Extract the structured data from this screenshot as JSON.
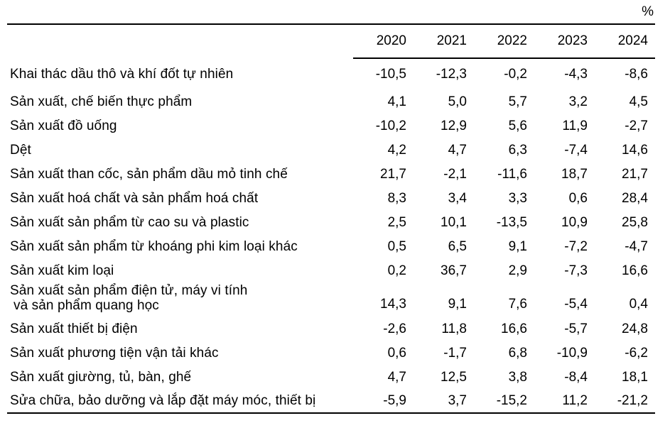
{
  "unit_label": "%",
  "chart_data": {
    "type": "table",
    "title": "",
    "unit": "%",
    "columns": [
      "2020",
      "2021",
      "2022",
      "2023",
      "2024"
    ],
    "rows": [
      {
        "label": "Khai thác dầu thô và khí đốt tự nhiên",
        "values": [
          "-10,5",
          "-12,3",
          "-0,2",
          "-4,3",
          "-8,6"
        ]
      },
      {
        "label": "Sản xuất, chế biến thực phẩm",
        "values": [
          "4,1",
          "5,0",
          "5,7",
          "3,2",
          "4,5"
        ]
      },
      {
        "label": "Sản xuất đồ uống",
        "values": [
          "-10,2",
          "12,9",
          "5,6",
          "11,9",
          "-2,7"
        ]
      },
      {
        "label": "Dệt",
        "values": [
          "4,2",
          "4,7",
          "6,3",
          "-7,4",
          "14,6"
        ]
      },
      {
        "label": "Sản xuất than cốc, sản phẩm dầu mỏ tinh chế",
        "values": [
          "21,7",
          "-2,1",
          "-11,6",
          "18,7",
          "21,7"
        ]
      },
      {
        "label": "Sản xuất hoá chất và sản phẩm hoá chất",
        "values": [
          "8,3",
          "3,4",
          "3,3",
          "0,6",
          "28,4"
        ]
      },
      {
        "label": "Sản xuất sản phẩm từ cao su và plastic",
        "values": [
          "2,5",
          "10,1",
          "-13,5",
          "10,9",
          "25,8"
        ]
      },
      {
        "label": "Sản xuất sản phẩm từ khoáng phi kim loại khác",
        "values": [
          "0,5",
          "6,5",
          "9,1",
          "-7,2",
          "-4,7"
        ]
      },
      {
        "label": "Sản xuất kim loại",
        "values": [
          "0,2",
          "36,7",
          "2,9",
          "-7,3",
          "16,6"
        ]
      },
      {
        "label": "Sản xuất sản phẩm điện tử, máy vi tính",
        "label_line2": "và sản phẩm quang học",
        "values": [
          "14,3",
          "9,1",
          "7,6",
          "-5,4",
          "0,4"
        ]
      },
      {
        "label": "Sản xuất thiết bị điện",
        "values": [
          "-2,6",
          "11,8",
          "16,6",
          "-5,7",
          "24,8"
        ]
      },
      {
        "label": "Sản xuất phương tiện vận tải khác",
        "values": [
          "0,6",
          "-1,7",
          "6,8",
          "-10,9",
          "-6,2"
        ]
      },
      {
        "label": "Sản xuất giường, tủ, bàn, ghế",
        "values": [
          "4,7",
          "12,5",
          "3,8",
          "-8,4",
          "18,1"
        ]
      },
      {
        "label": "Sửa chữa, bảo dưỡng và lắp đặt máy móc, thiết bị",
        "values": [
          "-5,9",
          "3,7",
          "-15,2",
          "11,2",
          "-21,2"
        ]
      }
    ]
  }
}
